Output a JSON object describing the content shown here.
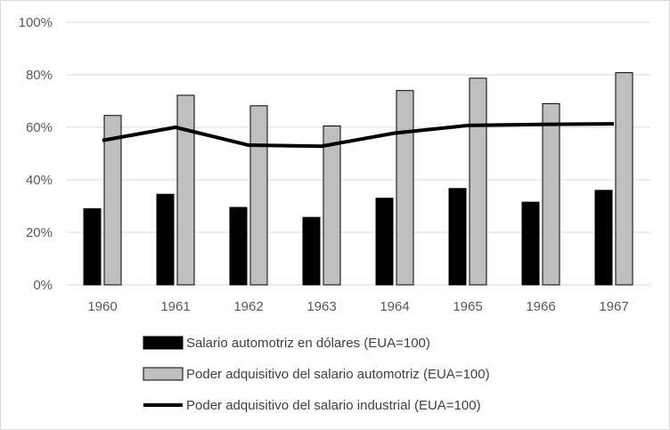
{
  "chart_data": {
    "type": "bar",
    "categories": [
      "1960",
      "1961",
      "1962",
      "1963",
      "1964",
      "1965",
      "1966",
      "1967"
    ],
    "series": [
      {
        "name": "Salario automotriz en dólares (EUA=100)",
        "type": "bar",
        "color": "#000000",
        "values": [
          0.29,
          0.345,
          0.295,
          0.257,
          0.33,
          0.367,
          0.315,
          0.36
        ]
      },
      {
        "name": "Poder adquisitivo del salario automotriz (EUA=100)",
        "type": "bar",
        "color": "#bfbfbf",
        "values": [
          0.645,
          0.722,
          0.682,
          0.605,
          0.74,
          0.787,
          0.69,
          0.808
        ]
      },
      {
        "name": "Poder adquisitivo del salario industrial (EUA=100)",
        "type": "line",
        "color": "#000000",
        "values": [
          0.55,
          0.6,
          0.532,
          0.528,
          0.578,
          0.607,
          0.611,
          0.613
        ]
      }
    ],
    "y_ticks": [
      "0%",
      "20%",
      "40%",
      "60%",
      "80%",
      "100%"
    ],
    "ylim": [
      0,
      1
    ],
    "grid": true,
    "legend_position": "bottom"
  }
}
